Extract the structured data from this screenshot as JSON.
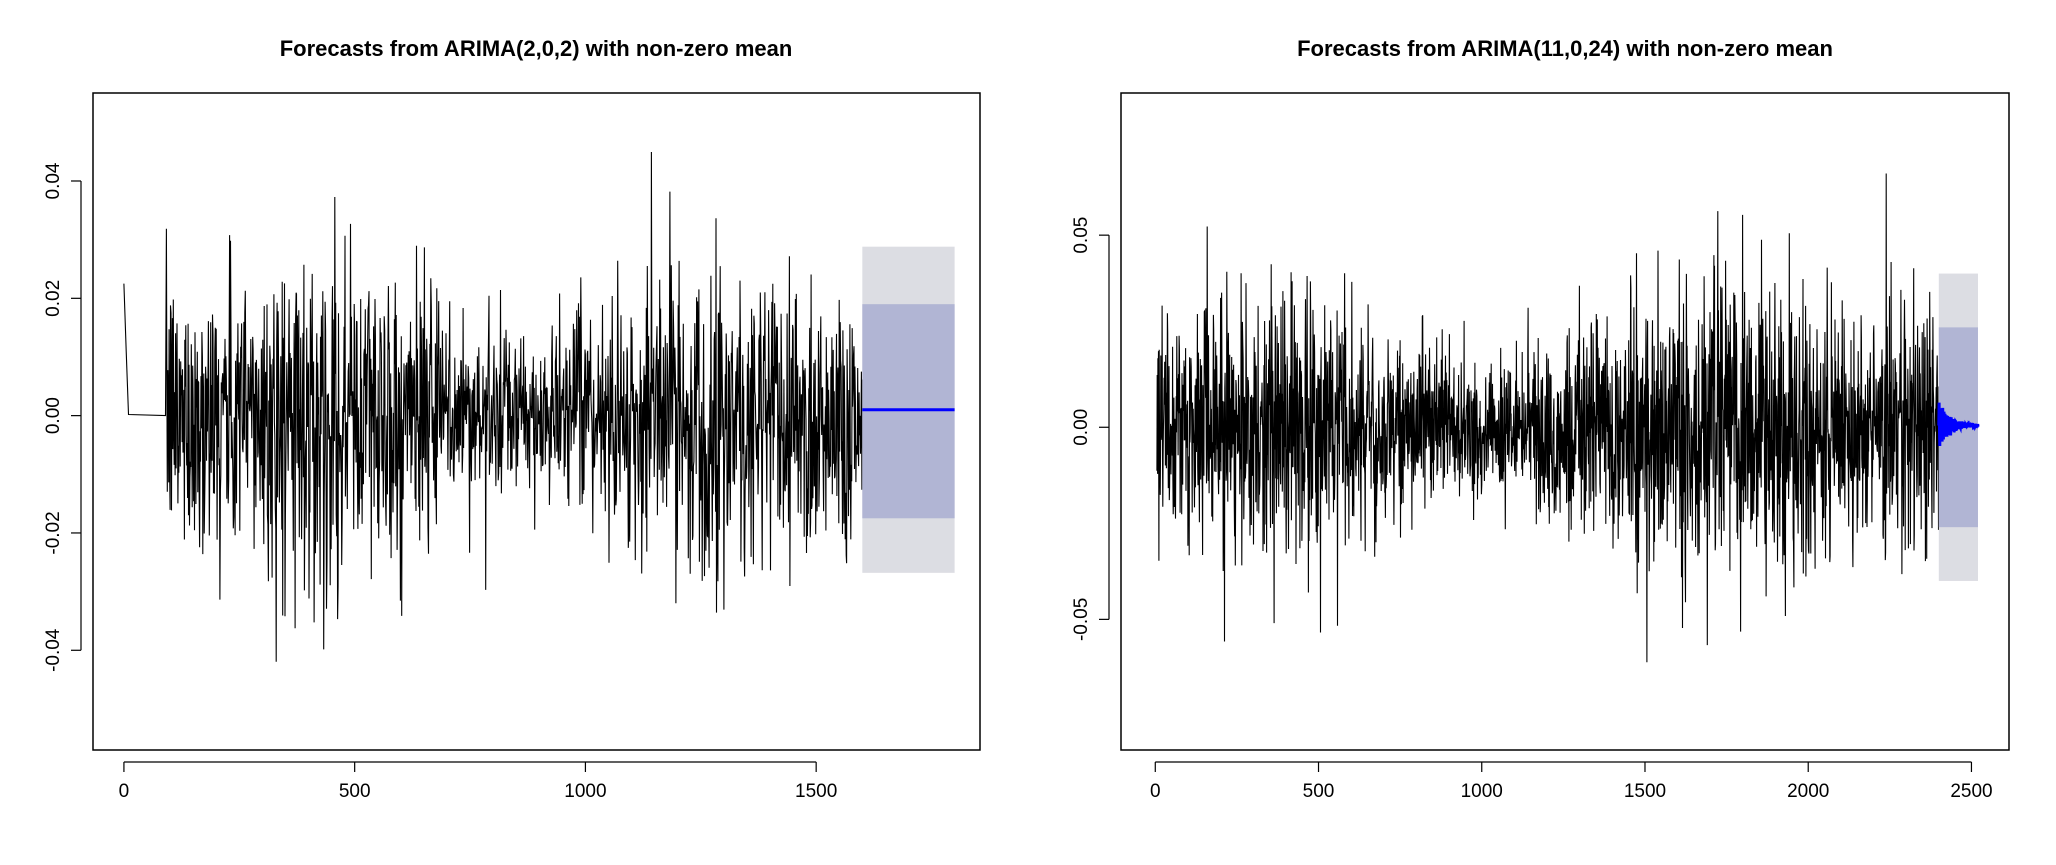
{
  "colors": {
    "background": "#ffffff",
    "series": "#000000",
    "forecast_line": "#0000ff",
    "interval_80": "#b1b5d4",
    "interval_95": "#dcdde3"
  },
  "chart_data": [
    {
      "type": "line",
      "title": "Forecasts from ARIMA(2,0,2) with non-zero mean",
      "xlabel": "",
      "ylabel": "",
      "xlim": [
        -67,
        1855
      ],
      "ylim": [
        -0.057,
        0.055
      ],
      "x_ticks": [
        0,
        500,
        1000,
        1500
      ],
      "x_tick_labels": [
        "0",
        "500",
        "1000",
        "1500"
      ],
      "y_ticks": [
        -0.04,
        -0.02,
        0.0,
        0.02,
        0.04
      ],
      "y_tick_labels": [
        "-0.04",
        "-0.02",
        "0.00",
        "0.02",
        "0.04"
      ],
      "grid": false,
      "legend": "none",
      "observed": {
        "n": 1600,
        "initial_segment": {
          "x": [
            0,
            5,
            10,
            90
          ],
          "y": [
            0.0225,
            0.011,
            0.0002,
            0.0
          ]
        },
        "volatile_start": 92,
        "approx_std": 0.0135,
        "y_range": [
          -0.052,
          0.051
        ]
      },
      "forecast": {
        "x": [
          1600,
          1800
        ],
        "mean": [
          0.001,
          0.001
        ],
        "lower_80": -0.0175,
        "upper_80": 0.019,
        "lower_95": -0.0268,
        "upper_95": 0.0288
      }
    },
    {
      "type": "line",
      "title": "Forecasts from ARIMA(11,0,24) with non-zero mean",
      "xlabel": "",
      "ylabel": "",
      "xlim": [
        -105,
        2615
      ],
      "ylim": [
        -0.084,
        0.087
      ],
      "x_ticks": [
        0,
        500,
        1000,
        1500,
        2000,
        2500
      ],
      "x_tick_labels": [
        "0",
        "500",
        "1000",
        "1500",
        "2000",
        "2500"
      ],
      "y_ticks": [
        -0.05,
        0.0,
        0.05
      ],
      "y_tick_labels": [
        "-0.05",
        "0.00",
        "0.05"
      ],
      "grid": false,
      "legend": "none",
      "observed": {
        "n": 2400,
        "volatile_start": 5,
        "approx_std": 0.0175,
        "y_range": [
          -0.079,
          0.082
        ]
      },
      "forecast": {
        "x": [
          2400,
          2520
        ],
        "mean": [
          0.0005,
          0.0005
        ],
        "lower_80": -0.026,
        "upper_80": 0.026,
        "lower_95": -0.04,
        "upper_95": 0.04
      }
    }
  ]
}
